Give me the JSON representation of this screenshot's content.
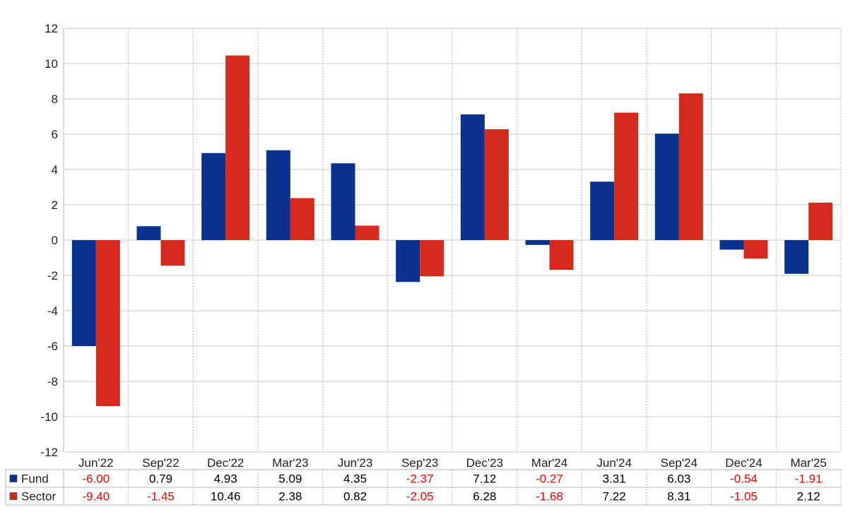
{
  "chart_data": {
    "type": "bar",
    "categories": [
      "Jun'22",
      "Sep'22",
      "Dec'22",
      "Mar'23",
      "Jun'23",
      "Sep'23",
      "Dec'23",
      "Mar'24",
      "Jun'24",
      "Sep'24",
      "Dec'24",
      "Mar'25"
    ],
    "series": [
      {
        "name": "Fund",
        "color": "#0B318F",
        "values": [
          -6.0,
          0.79,
          4.93,
          5.09,
          4.35,
          -2.37,
          7.12,
          -0.27,
          3.31,
          6.03,
          -0.54,
          -1.91
        ],
        "labels": [
          "-6.00",
          "0.79",
          "4.93",
          "5.09",
          "4.35",
          "-2.37",
          "7.12",
          "-0.27",
          "3.31",
          "6.03",
          "-0.54",
          "-1.91"
        ]
      },
      {
        "name": "Sector",
        "color": "#D52B1E",
        "values": [
          -9.4,
          -1.45,
          10.46,
          2.38,
          0.82,
          -2.05,
          6.28,
          -1.68,
          7.22,
          8.31,
          -1.05,
          2.12
        ],
        "labels": [
          "-9.40",
          "-1.45",
          "10.46",
          "2.38",
          "0.82",
          "-2.05",
          "6.28",
          "-1.68",
          "7.22",
          "8.31",
          "-1.05",
          "2.12"
        ]
      }
    ],
    "ylim": [
      -12,
      12
    ],
    "yticks": [
      -12,
      -10,
      -8,
      -6,
      -4,
      -2,
      0,
      2,
      4,
      6,
      8,
      10,
      12
    ],
    "grid": true,
    "legend": "data-table-below",
    "negative_color": "#FF0000",
    "positive_color": "#000000"
  }
}
